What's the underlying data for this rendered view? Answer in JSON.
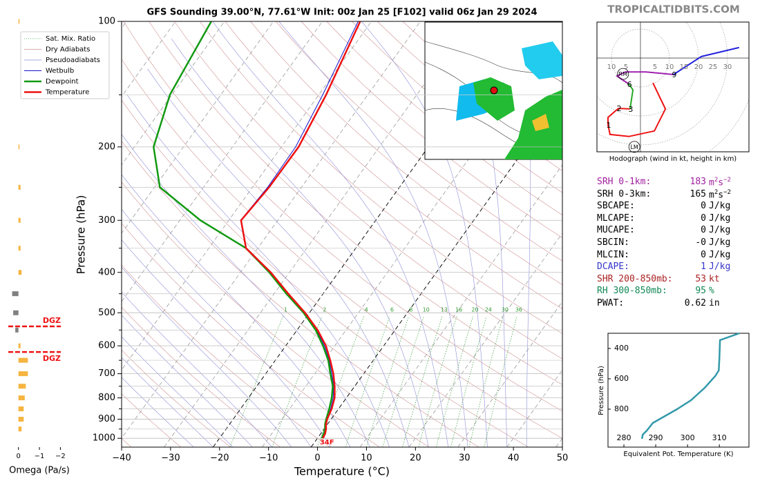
{
  "header": {
    "site": "TROPICALTIDBITS.COM"
  },
  "chart_data": [
    {
      "type": "skewt",
      "title": "GFS Sounding 39.00°N, 77.61°W Init: 00z Jan 25 [F102] valid 06z Jan 29 2024",
      "xlabel": "Temperature (°C)",
      "ylabel": "Pressure (hPa)",
      "log_y": true,
      "grid": true,
      "xlim": [
        -40,
        50
      ],
      "ylim": [
        1050,
        100
      ],
      "xticks": [
        {
          "value": -40,
          "label": "−40"
        },
        {
          "value": -30,
          "label": "−30"
        },
        {
          "value": -20,
          "label": "−20"
        },
        {
          "value": -10,
          "label": "−10"
        },
        0,
        10,
        20,
        30,
        40,
        50
      ],
      "yticks": [
        100,
        200,
        300,
        400,
        500,
        600,
        700,
        800,
        900,
        1000
      ],
      "yticks_minor": [
        150,
        250,
        350,
        450,
        550,
        650,
        750,
        850,
        950
      ],
      "pressure": [
        1000,
        975,
        950,
        925,
        900,
        850,
        800,
        750,
        700,
        650,
        600,
        550,
        500,
        450,
        400,
        350,
        300,
        250,
        200,
        150,
        100
      ],
      "series": [
        {
          "name": "Temperature",
          "color": "#ee1111",
          "values": [
            1.1,
            0.9,
            0.4,
            -0.3,
            -0.8,
            -1.4,
            -2.4,
            -4.1,
            -6.2,
            -8.8,
            -11.8,
            -15.8,
            -20.9,
            -27.1,
            -33.8,
            -42.4,
            -47.5,
            -46.6,
            -46.5,
            -48.5,
            -52.3
          ]
        },
        {
          "name": "Dewpoint",
          "color": "#119911",
          "values": [
            0.9,
            0.6,
            0.2,
            -0.5,
            -1.0,
            -1.9,
            -3.0,
            -4.5,
            -6.8,
            -9.2,
            -12.4,
            -16.2,
            -21.2,
            -27.5,
            -34.1,
            -42.4,
            -55.8,
            -68.9,
            -76.1,
            -80.4,
            -82.7
          ]
        },
        {
          "name": "Wetbulb",
          "color": "#1111cc",
          "values": [
            1.0,
            0.7,
            0.3,
            -0.4,
            -0.9,
            -1.6,
            -2.7,
            -4.3,
            -6.5,
            -9.0,
            -12.1,
            -16.0,
            -21.0,
            -27.3,
            -33.9,
            -42.4,
            -47.6,
            -46.9,
            -47.1,
            -49.2,
            -52.7
          ]
        }
      ],
      "mixing_ratio": {
        "name": "Sat. Mix. Ratio",
        "color": "#339933",
        "values": [
          1,
          2,
          4,
          6,
          8,
          10,
          13,
          16,
          20,
          24,
          30,
          36
        ]
      },
      "dry_adiabats": {
        "name": "Dry Adiabats",
        "color": "#d09090"
      },
      "pseudoadiabats": {
        "name": "Pseudoadiabats",
        "color": "#8c8cd8"
      },
      "isotherm_color": "#999999",
      "highlight_isotherms": [
        -20,
        0
      ],
      "surface_label": "34F"
    },
    {
      "type": "omega",
      "xlabel": "Omega (Pa/s)",
      "xlim": [
        0.55,
        -2.25
      ],
      "xticks": [
        0,
        {
          "value": -1,
          "label": "−1"
        },
        {
          "value": -2,
          "label": "−2"
        }
      ],
      "pressure": [
        100,
        200,
        250,
        300,
        350,
        400,
        450,
        500,
        550,
        600,
        650,
        700,
        750,
        800,
        850,
        900,
        950
      ],
      "values": [
        -0.05,
        -0.05,
        -0.1,
        -0.1,
        -0.1,
        -0.15,
        0.3,
        0.25,
        0.15,
        -0.1,
        -0.45,
        -0.45,
        -0.35,
        -0.3,
        -0.25,
        -0.25,
        -0.15
      ],
      "colors": {
        "rising": "#f5b540",
        "sinking": "#808080"
      },
      "dgz": {
        "label": "DGZ",
        "color": "#ee1111",
        "pressure": [
          539,
          621
        ]
      }
    },
    {
      "type": "hodograph",
      "caption": "Hodograph (wind in kt, height in km)",
      "xlim": [
        -15,
        37.4
      ],
      "ylim": [
        -32.4,
        12.4
      ],
      "xticks": [
        {
          "value": -10,
          "label": "10"
        },
        {
          "value": -5,
          "label": "5"
        },
        5,
        10,
        15,
        20,
        25,
        30
      ],
      "rings": [
        10,
        20,
        30,
        40
      ],
      "segments": [
        {
          "color": "#ee1111",
          "u": [
            4.3,
            8.6,
            4.8,
            -4.0,
            -10.5,
            -11.2,
            -11.2,
            -7.6,
            -3.6
          ],
          "v": [
            -8.6,
            -17.6,
            -25.2,
            -27.1,
            -26.4,
            -23.1,
            -20.5,
            -17.4,
            -17.6
          ]
        },
        {
          "color": "#22aa22",
          "u": [
            -3.6,
            -2.6,
            -4.0
          ],
          "v": [
            -17.6,
            -11.0,
            -9.0
          ]
        },
        {
          "color": "#a020b0",
          "u": [
            -4.0,
            -8.1,
            -5.2,
            1.9,
            11.4
          ],
          "v": [
            -9.0,
            -6.2,
            -4.8,
            -4.8,
            -5.7
          ]
        },
        {
          "color": "#2222dd",
          "u": [
            11.4,
            21.0,
            34.0
          ],
          "v": [
            -5.7,
            0.5,
            3.6
          ]
        }
      ],
      "height_labels": [
        {
          "label": 1,
          "u": -11.2,
          "v": -23.1
        },
        {
          "label": 2,
          "u": -7.6,
          "v": -17.4
        },
        {
          "label": 3,
          "u": -3.6,
          "v": -17.6
        },
        {
          "label": 6,
          "u": -4.0,
          "v": -9.0
        },
        {
          "label": 9,
          "u": 11.4,
          "v": -5.7
        }
      ],
      "storm_motion": [
        {
          "label": "RM",
          "u": -6.0,
          "v": -5.5
        },
        {
          "label": "LM",
          "u": -2.1,
          "v": -30.7
        }
      ]
    },
    {
      "type": "line",
      "xlabel": "Equivalent Pot. Temperature (K)",
      "ylabel": "Pressure (hPa)",
      "xlim": [
        275,
        319.3
      ],
      "ylim": [
        1050,
        300
      ],
      "xticks": [
        280,
        290,
        300,
        310
      ],
      "yticks": [
        400,
        600,
        800
      ],
      "color": "#3399aa",
      "pressure": [
        995,
        968,
        941,
        891,
        800,
        741,
        659,
        582,
        545,
        468,
        345,
        300
      ],
      "values": [
        285.7,
        285.9,
        287.2,
        289.1,
        296.7,
        301.1,
        305.4,
        308.7,
        309.8,
        310.0,
        310.2,
        316.3
      ]
    }
  ],
  "indices": [
    {
      "label": "SRH 0-1km:",
      "value": "183",
      "unit": [
        {
          "text": "m"
        },
        {
          "text": "2",
          "sup": true
        },
        {
          "text": "s"
        },
        {
          "text": "−2",
          "sup": true
        }
      ],
      "color": "#a020a0"
    },
    {
      "label": "SRH 0-3km:",
      "value": "165",
      "unit": [
        {
          "text": "m"
        },
        {
          "text": "2",
          "sup": true
        },
        {
          "text": "s"
        },
        {
          "text": "−2",
          "sup": true
        }
      ],
      "color": "#000000"
    },
    {
      "label": "SBCAPE:",
      "value": "0",
      "unit": [
        {
          "text": "J/kg"
        }
      ],
      "color": "#000000"
    },
    {
      "label": "MLCAPE:",
      "value": "0",
      "unit": [
        {
          "text": "J/kg"
        }
      ],
      "color": "#000000"
    },
    {
      "label": "MUCAPE:",
      "value": "0",
      "unit": [
        {
          "text": "J/kg"
        }
      ],
      "color": "#000000"
    },
    {
      "label": "SBCIN:",
      "value": "-0",
      "unit": [
        {
          "text": "J/kg"
        }
      ],
      "color": "#000000"
    },
    {
      "label": "MLCIN:",
      "value": "0",
      "unit": [
        {
          "text": "J/kg"
        }
      ],
      "color": "#000000"
    },
    {
      "label": "DCAPE:",
      "value": "1",
      "unit": [
        {
          "text": "J/kg"
        }
      ],
      "color": "#3333cc"
    },
    {
      "label": "SHR 200-850mb:",
      "value": "53",
      "unit": [
        {
          "text": "kt"
        }
      ],
      "color": "#aa2222"
    },
    {
      "label": "RH 300-850mb:",
      "value": "95",
      "unit": [
        {
          "text": "%"
        }
      ],
      "color": "#118855"
    },
    {
      "label": "PWAT:",
      "value": "0.62",
      "unit": [
        {
          "text": "in"
        }
      ],
      "color": "#000000"
    }
  ]
}
